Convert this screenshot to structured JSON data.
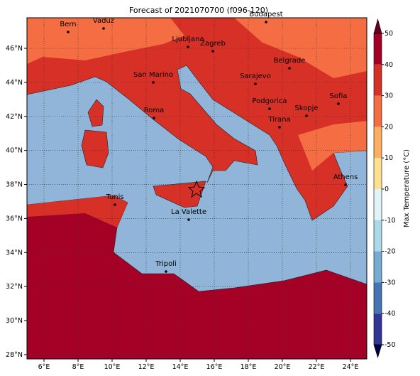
{
  "title": "Forecast of 2021070700 (f096-120)",
  "xticks": [
    {
      "value": 6,
      "label": "6°E"
    },
    {
      "value": 8,
      "label": "8°E"
    },
    {
      "value": 10,
      "label": "10°E"
    },
    {
      "value": 12,
      "label": "12°E"
    },
    {
      "value": 14,
      "label": "14°E"
    },
    {
      "value": 16,
      "label": "16°E"
    },
    {
      "value": 18,
      "label": "18°E"
    },
    {
      "value": 20,
      "label": "20°E"
    },
    {
      "value": 22,
      "label": "22°E"
    },
    {
      "value": 24,
      "label": "24°E"
    }
  ],
  "yticks": [
    {
      "value": 28,
      "label": "28°N"
    },
    {
      "value": 30,
      "label": "30°N"
    },
    {
      "value": 32,
      "label": "32°N"
    },
    {
      "value": 34,
      "label": "34°N"
    },
    {
      "value": 36,
      "label": "36°N"
    },
    {
      "value": 38,
      "label": "38°N"
    },
    {
      "value": 40,
      "label": "40°N"
    },
    {
      "value": 42,
      "label": "42°N"
    },
    {
      "value": 44,
      "label": "44°N"
    },
    {
      "value": 46,
      "label": "46°N"
    }
  ],
  "cities": [
    "Bern",
    "Vaduz",
    "Budapest",
    "Ljubljana",
    "Zagreb",
    "Belgrade",
    "San Marino",
    "Sarajevo",
    "Sofia",
    "Podgorica",
    "Skopje",
    "Roma",
    "Tirana",
    "Athens",
    "Tunis",
    "La Valette",
    "Tripoli"
  ],
  "colorbar": {
    "label": "Max Temperature (°C)",
    "ticks": [
      50,
      40,
      30,
      20,
      10,
      0,
      -10,
      -20,
      -30,
      -40,
      -50
    ],
    "colors": [
      "#a50026",
      "#d73027",
      "#f46d43",
      "#fdae61",
      "#fee090",
      "#e0f3f8",
      "#abd9e9",
      "#74add1",
      "#4575b4",
      "#313695"
    ]
  }
}
